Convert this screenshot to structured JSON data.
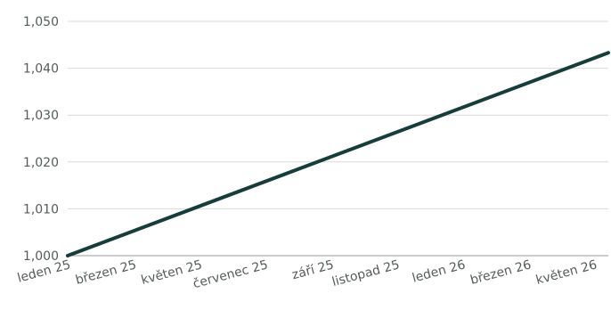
{
  "chart_data": {
    "type": "line",
    "x_ticks": [
      "leden 25",
      "březen 25",
      "květen 25",
      "červenec 25",
      "září 25",
      "listopad 25",
      "leden 26",
      "březen 26",
      "květen 26"
    ],
    "y_ticks": [
      "1,000",
      "1,010",
      "1,020",
      "1,030",
      "1,040",
      "1,050"
    ],
    "ylim": [
      1.0,
      1.05
    ],
    "xlim": [
      "2025-01-01",
      "2026-06-01"
    ],
    "grid": true,
    "series": [
      {
        "color": "#173d3a",
        "points": [
          {
            "x": "2025-01-01",
            "y": 1.0
          },
          {
            "x": "2026-06-01",
            "y": 1.0433
          }
        ]
      }
    ]
  }
}
